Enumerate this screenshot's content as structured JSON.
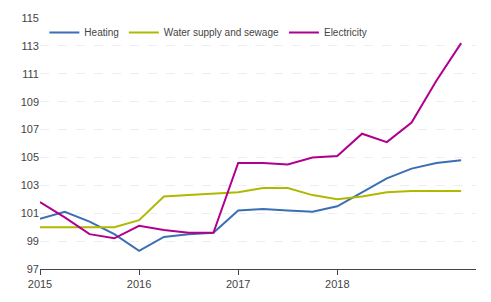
{
  "chart_data": {
    "type": "line",
    "xlim": [
      2015.0,
      2019.4
    ],
    "xticks": [
      2015,
      2016,
      2017,
      2018
    ],
    "ylim": [
      97,
      115
    ],
    "yticks": [
      97,
      99,
      101,
      103,
      105,
      107,
      109,
      111,
      113,
      115
    ],
    "grid": "y",
    "legend": "upper left",
    "x": [
      2015.0,
      2015.25,
      2015.5,
      2015.75,
      2016.0,
      2016.25,
      2016.5,
      2016.75,
      2017.0,
      2017.25,
      2017.5,
      2017.75,
      2018.0,
      2018.25,
      2018.5,
      2018.75,
      2019.0,
      2019.25
    ],
    "series": [
      {
        "name": "Heating",
        "color": "#3b6eb5",
        "values": [
          100.6,
          101.1,
          100.4,
          99.5,
          98.3,
          99.3,
          99.5,
          99.6,
          101.2,
          101.3,
          101.2,
          101.1,
          101.5,
          102.5,
          103.5,
          104.2,
          104.6,
          104.8
        ]
      },
      {
        "name": "Water supply and sewage",
        "color": "#b0b800",
        "values": [
          100.0,
          100.0,
          100.0,
          100.0,
          100.5,
          102.2,
          102.3,
          102.4,
          102.5,
          102.8,
          102.8,
          102.3,
          102.0,
          102.2,
          102.5,
          102.6,
          102.6,
          102.6
        ]
      },
      {
        "name": "Electricity",
        "color": "#b0008c",
        "values": [
          101.8,
          100.7,
          99.5,
          99.2,
          100.1,
          99.8,
          99.6,
          99.6,
          104.6,
          104.6,
          104.5,
          105.0,
          105.1,
          106.7,
          106.1,
          107.5,
          110.5,
          113.2
        ]
      }
    ]
  }
}
